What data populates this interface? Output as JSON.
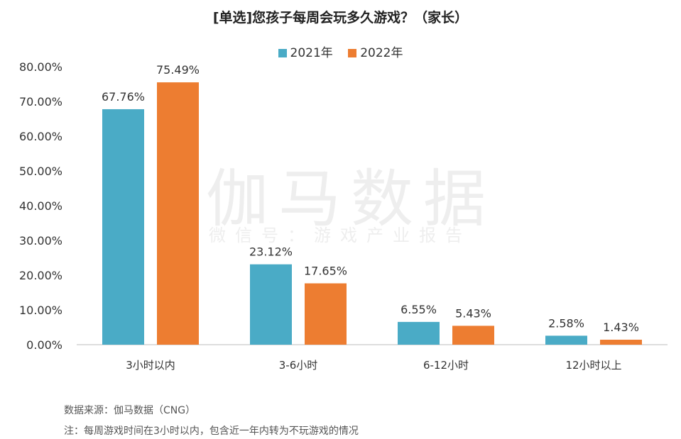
{
  "title": "[单选]您孩子每周会玩多久游戏？（家长）",
  "watermark": {
    "main": "伽马数据",
    "sub": "微信号：游戏产业报告"
  },
  "footer": {
    "source": "数据来源：伽马数据（CNG）",
    "note": "注：每周游戏时间在3小时以内，包含近一年内转为不玩游戏的情况"
  },
  "colors": {
    "series_2021": "#4aabc6",
    "series_2022": "#ed7d31",
    "axis": "#bbbbbb",
    "text": "#333333"
  },
  "chart_data": {
    "type": "bar",
    "categories": [
      "3小时以内",
      "3-6小时",
      "6-12小时",
      "12小时以上"
    ],
    "series": [
      {
        "name": "2021年",
        "values": [
          67.76,
          23.12,
          6.55,
          2.58
        ],
        "labels": [
          "67.76%",
          "23.12%",
          "6.55%",
          "2.58%"
        ]
      },
      {
        "name": "2022年",
        "values": [
          75.49,
          17.65,
          5.43,
          1.43
        ],
        "labels": [
          "75.49%",
          "17.65%",
          "5.43%",
          "1.43%"
        ]
      }
    ],
    "y_ticks": [
      "0.00%",
      "10.00%",
      "20.00%",
      "30.00%",
      "40.00%",
      "50.00%",
      "60.00%",
      "70.00%",
      "80.00%"
    ],
    "ylim": [
      0,
      80
    ],
    "grid": false,
    "legend_position": "top-center"
  }
}
